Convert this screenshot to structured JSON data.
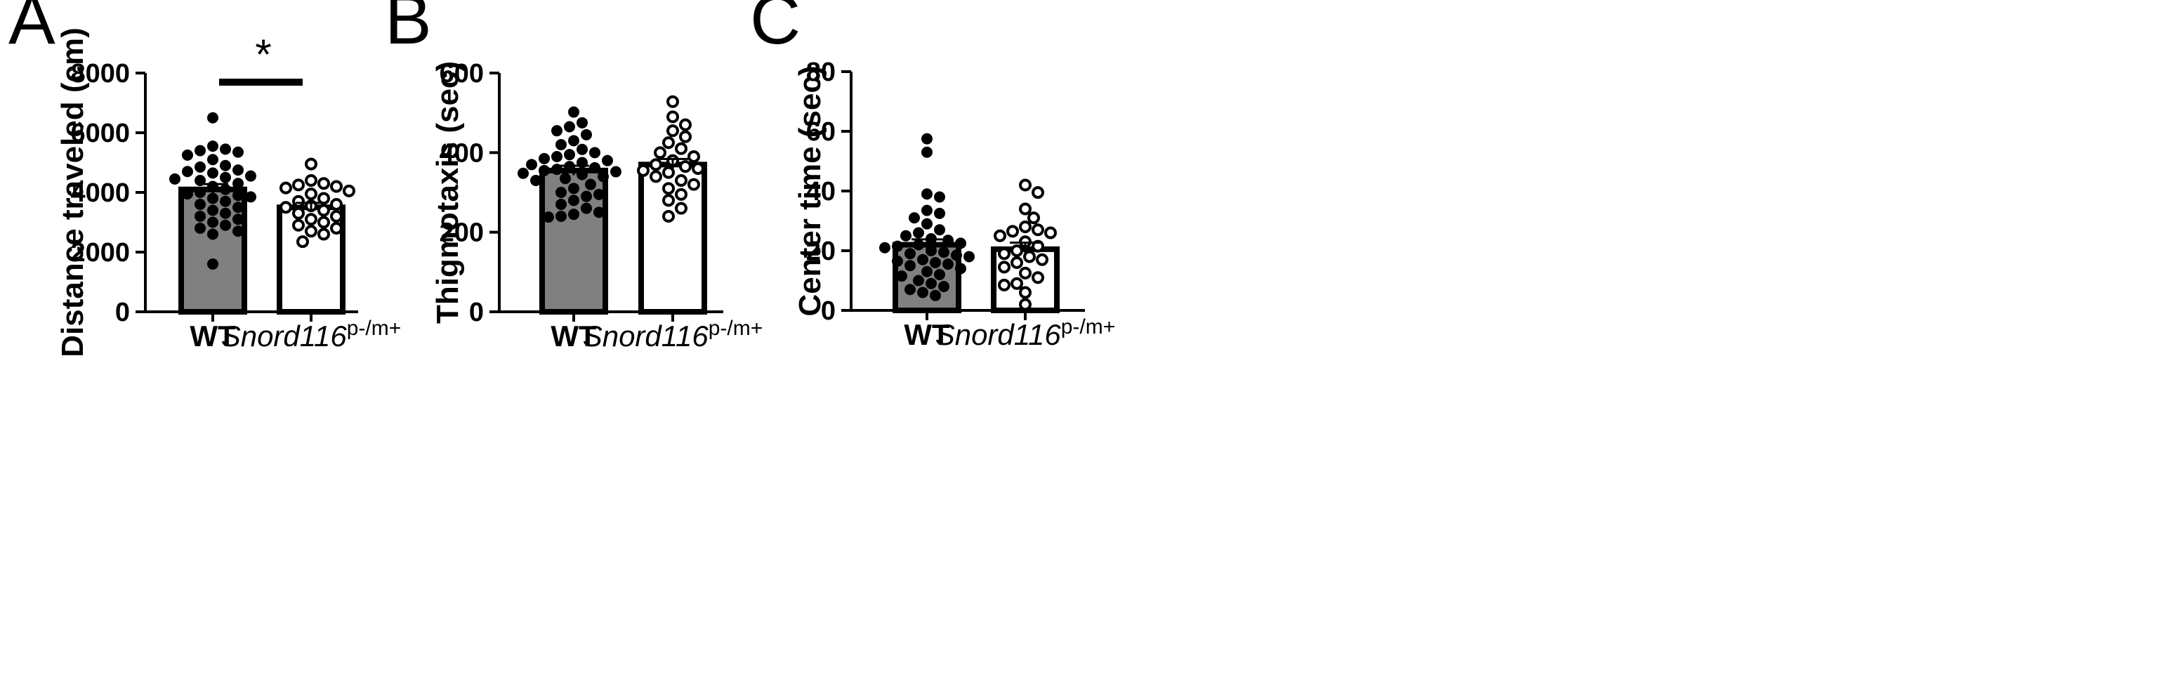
{
  "colors": {
    "wt_bar": "#808080",
    "mut_bar": "#ffffff",
    "ink": "#000000"
  },
  "chart_data": [
    {
      "type": "bar",
      "panel_label": "A",
      "ylabel": "Distance traveled (cm)",
      "ylim": [
        0,
        8000
      ],
      "yticks": [
        0,
        2000,
        4000,
        6000,
        8000
      ],
      "categories": [
        {
          "label": "WT",
          "sup": ""
        },
        {
          "label": "Snord116",
          "sup": "p-/m+"
        }
      ],
      "means": [
        4100,
        3500
      ],
      "sem": [
        180,
        150
      ],
      "points": [
        [
          6500,
          5550,
          5450,
          5400,
          5350,
          5250,
          5100,
          4900,
          4850,
          4750,
          4700,
          4650,
          4550,
          4500,
          4450,
          4400,
          4300,
          4200,
          4100,
          4000,
          3950,
          3900,
          3850,
          3800,
          3700,
          3600,
          3500,
          3400,
          3300,
          3200,
          3100,
          3000,
          2900,
          2800,
          2700,
          2600,
          1600
        ],
        [
          4950,
          4400,
          4300,
          4250,
          4200,
          4150,
          4050,
          3950,
          3800,
          3700,
          3600,
          3550,
          3500,
          3400,
          3300,
          3200,
          3100,
          3000,
          2900,
          2800,
          2700,
          2600,
          2350
        ]
      ],
      "significance": "*"
    },
    {
      "type": "bar",
      "panel_label": "B",
      "ylabel": "Thigmotaxis (sec)",
      "ylim": [
        0,
        600
      ],
      "yticks": [
        0,
        200,
        400,
        600
      ],
      "categories": [
        {
          "label": "WT",
          "sup": ""
        },
        {
          "label": "Snord116",
          "sup": "p-/m+"
        }
      ],
      "means": [
        355,
        370
      ],
      "sem": [
        12,
        14
      ],
      "points": [
        [
          502,
          475,
          465,
          455,
          445,
          430,
          420,
          408,
          400,
          395,
          390,
          385,
          380,
          375,
          370,
          365,
          362,
          358,
          355,
          352,
          348,
          345,
          340,
          335,
          330,
          320,
          310,
          300,
          295,
          290,
          280,
          270,
          260,
          250,
          245,
          240,
          238
        ],
        [
          528,
          490,
          470,
          455,
          440,
          425,
          410,
          400,
          390,
          380,
          370,
          365,
          360,
          355,
          350,
          340,
          330,
          320,
          310,
          295,
          280,
          260,
          240
        ]
      ],
      "significance": ""
    },
    {
      "type": "bar",
      "panel_label": "C",
      "ylabel": "Center time (sec)",
      "ylim": [
        0,
        80
      ],
      "yticks": [
        0,
        20,
        40,
        60,
        80
      ],
      "categories": [
        {
          "label": "WT",
          "sup": ""
        },
        {
          "label": "Snord116",
          "sup": "p-/m+"
        }
      ],
      "means": [
        22,
        20.5
      ],
      "sem": [
        1.8,
        2.2
      ],
      "points": [
        [
          57.5,
          53,
          39,
          38,
          33.5,
          32.5,
          31,
          29,
          27,
          26,
          25,
          24,
          23.5,
          22.5,
          22,
          21.5,
          21,
          20,
          19.5,
          19,
          18.5,
          18,
          17,
          16.5,
          16,
          15.5,
          15,
          14,
          13,
          12,
          11.5,
          10,
          9,
          8,
          7,
          6,
          5
        ],
        [
          42,
          39.5,
          34,
          31,
          28,
          27,
          26.5,
          26,
          25,
          23,
          21.5,
          20,
          19,
          18,
          17,
          16,
          14.5,
          12.5,
          11,
          9,
          8.5,
          6,
          2
        ]
      ],
      "significance": ""
    }
  ]
}
